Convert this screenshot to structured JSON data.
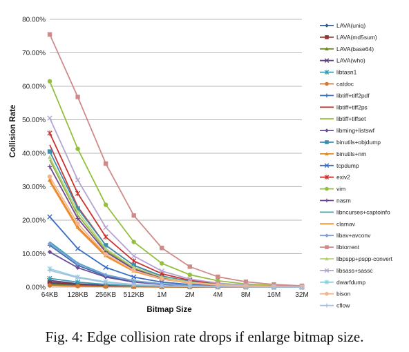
{
  "caption": "Fig. 4: Edge collision rate drops if enlarge bitmap size.",
  "chart_data": {
    "type": "line",
    "title": "",
    "xlabel": "Bitmap Size",
    "ylabel": "Collision Rate",
    "categories": [
      "64KB",
      "128KB",
      "256KB",
      "512KB",
      "1M",
      "2M",
      "4M",
      "8M",
      "16M",
      "32M"
    ],
    "ylim": [
      0,
      80
    ],
    "yticks": [
      0,
      10,
      20,
      30,
      40,
      50,
      60,
      70,
      80
    ],
    "ytick_labels": [
      "0.00%",
      "10.00%",
      "20.00%",
      "30.00%",
      "40.00%",
      "50.00%",
      "60.00%",
      "70.00%",
      "80.00%"
    ],
    "grid": true,
    "legend_position": "right",
    "series": [
      {
        "name": "LAVA(uniq)",
        "color": "#2e5c8a",
        "marker": "diamond",
        "values": [
          1.2,
          0.6,
          0.3,
          0.15,
          0.08,
          0.04,
          0.02,
          0.01,
          0.0,
          0.0
        ]
      },
      {
        "name": "LAVA(md5sum)",
        "color": "#9b2d2d",
        "marker": "square",
        "values": [
          1.5,
          0.8,
          0.4,
          0.2,
          0.1,
          0.05,
          0.03,
          0.01,
          0.0,
          0.0
        ]
      },
      {
        "name": "LAVA(base64)",
        "color": "#6b8a2e",
        "marker": "triangle",
        "values": [
          0.8,
          0.4,
          0.2,
          0.1,
          0.05,
          0.02,
          0.01,
          0.0,
          0.0,
          0.0
        ]
      },
      {
        "name": "LAVA(who)",
        "color": "#5a3f7d",
        "marker": "x",
        "values": [
          2.0,
          1.0,
          0.5,
          0.25,
          0.12,
          0.06,
          0.03,
          0.01,
          0.0,
          0.0
        ]
      },
      {
        "name": "libtasn1",
        "color": "#3a9bb0",
        "marker": "star",
        "values": [
          2.6,
          1.5,
          0.8,
          0.4,
          0.2,
          0.1,
          0.05,
          0.02,
          0.01,
          0.0
        ]
      },
      {
        "name": "catdoc",
        "color": "#d6772b",
        "marker": "circle",
        "values": [
          0.5,
          0.3,
          0.15,
          0.08,
          0.04,
          0.02,
          0.01,
          0.0,
          0.0,
          0.0
        ]
      },
      {
        "name": "libtiff+tiff2pdf",
        "color": "#3d6eb5",
        "marker": "plus",
        "values": [
          12.5,
          6.5,
          3.3,
          1.7,
          0.9,
          0.45,
          0.22,
          0.11,
          0.05,
          0.02
        ]
      },
      {
        "name": "libtiff+tiff2ps",
        "color": "#c23b3b",
        "marker": "none",
        "values": [
          42.5,
          24.0,
          12.5,
          6.5,
          3.3,
          1.7,
          0.85,
          0.43,
          0.2,
          0.1
        ]
      },
      {
        "name": "libtiff+tiffset",
        "color": "#8fb33a",
        "marker": "none",
        "values": [
          38.0,
          21.5,
          11.0,
          5.6,
          2.9,
          1.5,
          0.75,
          0.38,
          0.19,
          0.1
        ]
      },
      {
        "name": "libming+listswf",
        "color": "#6d4c94",
        "marker": "diamond",
        "values": [
          10.5,
          5.8,
          3.0,
          1.5,
          0.8,
          0.4,
          0.2,
          0.1,
          0.05,
          0.02
        ]
      },
      {
        "name": "binutils+objdump",
        "color": "#3c8fb0",
        "marker": "square",
        "values": [
          40.5,
          23.5,
          12.5,
          6.5,
          3.3,
          1.7,
          0.85,
          0.43,
          0.21,
          0.1
        ]
      },
      {
        "name": "binutils+nm",
        "color": "#e08a2e",
        "marker": "triangle",
        "values": [
          32.0,
          18.0,
          9.5,
          4.9,
          2.5,
          1.25,
          0.62,
          0.31,
          0.15,
          0.08
        ]
      },
      {
        "name": "tcpdump",
        "color": "#3a6cc4",
        "marker": "x",
        "values": [
          21.0,
          11.5,
          5.9,
          3.0,
          1.5,
          0.78,
          0.4,
          0.2,
          0.1,
          0.05
        ]
      },
      {
        "name": "exiv2",
        "color": "#c8312f",
        "marker": "star",
        "values": [
          46.0,
          28.0,
          15.0,
          7.8,
          4.0,
          2.0,
          1.0,
          0.5,
          0.25,
          0.12
        ]
      },
      {
        "name": "vim",
        "color": "#93bf3d",
        "marker": "circle",
        "values": [
          61.5,
          41.3,
          24.6,
          13.5,
          7.1,
          3.7,
          1.9,
          0.95,
          0.48,
          0.24
        ]
      },
      {
        "name": "nasm",
        "color": "#70468f",
        "marker": "plus",
        "values": [
          36.0,
          20.5,
          10.5,
          5.4,
          2.7,
          1.4,
          0.7,
          0.35,
          0.17,
          0.09
        ]
      },
      {
        "name": "libncurses+captoinfo",
        "color": "#3aa6b8",
        "marker": "none",
        "values": [
          13.5,
          7.2,
          3.7,
          1.9,
          1.0,
          0.5,
          0.25,
          0.12,
          0.06,
          0.03
        ]
      },
      {
        "name": "clamav",
        "color": "#ef8c2b",
        "marker": "none",
        "values": [
          31.5,
          17.5,
          9.2,
          4.7,
          2.4,
          1.2,
          0.6,
          0.3,
          0.15,
          0.08
        ]
      },
      {
        "name": "libav+avconv",
        "color": "#7a9fd6",
        "marker": "diamond",
        "values": [
          13.0,
          7.0,
          3.6,
          1.85,
          0.95,
          0.48,
          0.24,
          0.12,
          0.06,
          0.03
        ]
      },
      {
        "name": "libtorrent",
        "color": "#cf8a8a",
        "marker": "square",
        "values": [
          75.5,
          56.8,
          36.9,
          21.4,
          11.7,
          6.1,
          3.1,
          1.6,
          0.8,
          0.4
        ]
      },
      {
        "name": "libpspp+pspp-convert",
        "color": "#b6d37c",
        "marker": "triangle",
        "values": [
          38.8,
          22.5,
          11.5,
          5.9,
          3.0,
          1.5,
          0.76,
          0.38,
          0.19,
          0.1
        ]
      },
      {
        "name": "libsass+sassc",
        "color": "#b3a3d1",
        "marker": "x",
        "values": [
          50.5,
          32.0,
          17.8,
          9.3,
          4.8,
          2.4,
          1.2,
          0.6,
          0.3,
          0.15
        ]
      },
      {
        "name": "dwarfdump",
        "color": "#8fd0dd",
        "marker": "star",
        "values": [
          5.5,
          3.0,
          1.6,
          0.8,
          0.4,
          0.2,
          0.1,
          0.05,
          0.03,
          0.01
        ]
      },
      {
        "name": "bison",
        "color": "#f5b58a",
        "marker": "circle",
        "values": [
          33.0,
          19.0,
          9.8,
          5.0,
          2.5,
          1.3,
          0.65,
          0.32,
          0.16,
          0.08
        ]
      },
      {
        "name": "cflow",
        "color": "#a9c0e3",
        "marker": "plus",
        "values": [
          5.0,
          2.8,
          1.4,
          0.7,
          0.36,
          0.18,
          0.09,
          0.05,
          0.02,
          0.01
        ]
      }
    ]
  }
}
